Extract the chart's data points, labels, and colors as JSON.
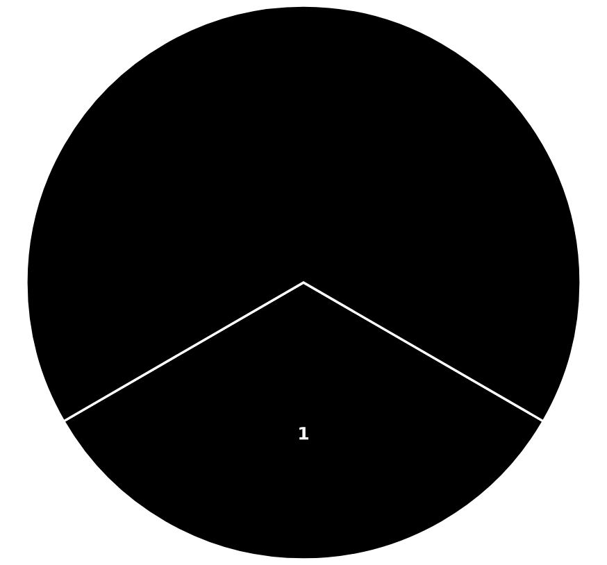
{
  "chart_data": {
    "type": "pie",
    "categories": [
      "1",
      null
    ],
    "values": [
      33.3,
      66.7
    ],
    "colors": [
      "#000000",
      "#000000"
    ]
  }
}
